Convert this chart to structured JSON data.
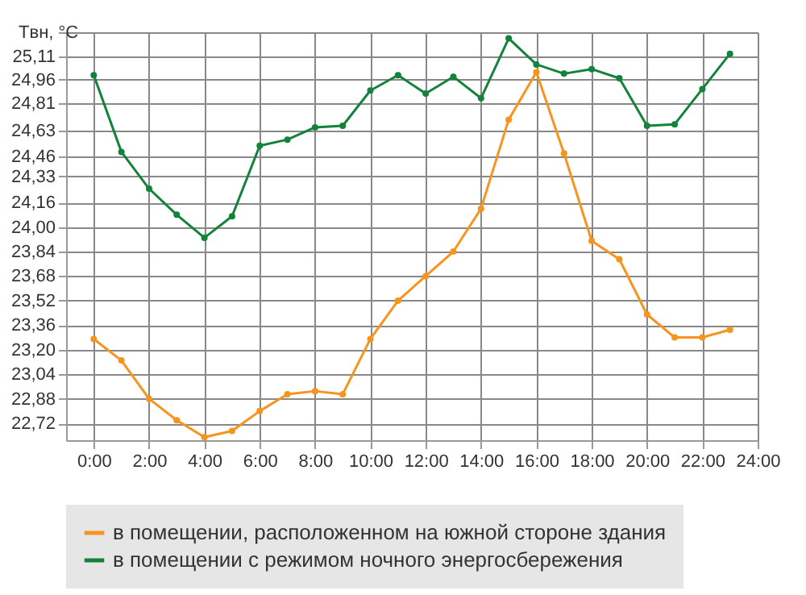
{
  "chart_data": {
    "type": "line",
    "ylabel": "Tвн, °C",
    "x": [
      0,
      1,
      2,
      3,
      4,
      5,
      6,
      7,
      8,
      9,
      10,
      11,
      12,
      13,
      14,
      15,
      16,
      17,
      18,
      19,
      20,
      21,
      22,
      23
    ],
    "series": [
      {
        "name": "в помещении, расположенном на южной стороне здания",
        "color": "#f7941d",
        "values": [
          23.27,
          23.13,
          22.88,
          22.74,
          22.63,
          22.67,
          22.8,
          22.91,
          22.93,
          22.91,
          23.27,
          23.52,
          23.68,
          23.84,
          24.12,
          24.7,
          25.01,
          24.48,
          23.91,
          23.79,
          23.43,
          23.28,
          23.28,
          23.33
        ]
      },
      {
        "name": "в помещении с режимом ночного энергосбережения",
        "color": "#13833c",
        "values": [
          24.99,
          24.49,
          24.25,
          24.08,
          23.93,
          24.07,
          24.53,
          24.57,
          24.65,
          24.66,
          24.89,
          24.99,
          24.87,
          24.98,
          24.84,
          25.23,
          25.06,
          25.0,
          25.03,
          24.97,
          24.66,
          24.67,
          24.9,
          25.13
        ]
      }
    ],
    "xlim": [
      -1,
      24
    ],
    "xticks": [
      {
        "value": 0,
        "label": "0:00"
      },
      {
        "value": 2,
        "label": "2:00"
      },
      {
        "value": 4,
        "label": "4:00"
      },
      {
        "value": 6,
        "label": "6:00"
      },
      {
        "value": 8,
        "label": "8:00"
      },
      {
        "value": 10,
        "label": "10:00"
      },
      {
        "value": 12,
        "label": "12:00"
      },
      {
        "value": 14,
        "label": "14:00"
      },
      {
        "value": 16,
        "label": "16:00"
      },
      {
        "value": 18,
        "label": "18:00"
      },
      {
        "value": 20,
        "label": "20:00"
      },
      {
        "value": 22,
        "label": "22:00"
      },
      {
        "value": 24,
        "label": "24:00"
      }
    ],
    "ylim": [
      22.61,
      25.27
    ],
    "yticks": [
      {
        "value": 22.72,
        "label": "22,72"
      },
      {
        "value": 22.88,
        "label": "22,88"
      },
      {
        "value": 23.04,
        "label": "23,04"
      },
      {
        "value": 23.2,
        "label": "23,20"
      },
      {
        "value": 23.36,
        "label": "23,36"
      },
      {
        "value": 23.52,
        "label": "23,52"
      },
      {
        "value": 23.68,
        "label": "23,68"
      },
      {
        "value": 23.84,
        "label": "23,84"
      },
      {
        "value": 24.0,
        "label": "24,00"
      },
      {
        "value": 24.16,
        "label": "24,16"
      },
      {
        "value": 24.33,
        "label": "24,33"
      },
      {
        "value": 24.46,
        "label": "24,46"
      },
      {
        "value": 24.63,
        "label": "24,63"
      },
      {
        "value": 24.81,
        "label": "24,81"
      },
      {
        "value": 24.96,
        "label": "24,96"
      },
      {
        "value": 25.11,
        "label": "25,11"
      },
      {
        "value": 25.27,
        "label": null
      }
    ],
    "grid": true,
    "legend": "bottom",
    "marker": "circle",
    "line_style": "solid"
  }
}
